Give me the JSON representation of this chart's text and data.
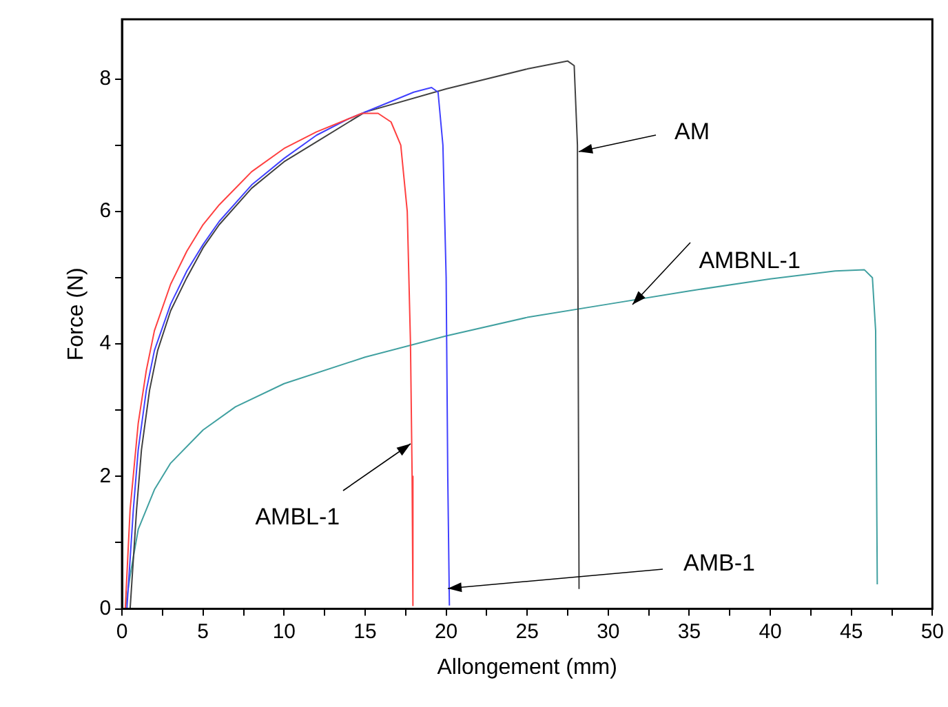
{
  "chart_data": {
    "type": "line",
    "xlabel": "Allongement (mm)",
    "ylabel": "Force (N)",
    "xlim": [
      0,
      50
    ],
    "ylim": [
      0,
      8.9
    ],
    "xticks": [
      0,
      {
        "value": 2.5,
        "label": null
      },
      5,
      {
        "value": 7.5,
        "label": null
      },
      10,
      {
        "value": 12.5,
        "label": null
      },
      15,
      {
        "value": 17.5,
        "label": null
      },
      20,
      {
        "value": 22.5,
        "label": null
      },
      25,
      {
        "value": 27.5,
        "label": null
      },
      30,
      {
        "value": 32.5,
        "label": null
      },
      35,
      {
        "value": 37.5,
        "label": null
      },
      40,
      {
        "value": 42.5,
        "label": null
      },
      45,
      {
        "value": 47.5,
        "label": null
      },
      50
    ],
    "yticks": [
      0,
      {
        "value": 1,
        "label": null
      },
      2,
      {
        "value": 3,
        "label": null
      },
      4,
      {
        "value": 5,
        "label": null
      },
      6,
      {
        "value": 7,
        "label": null
      },
      8
    ],
    "grid": false,
    "legend": false,
    "marker": "none",
    "line_style": "solid",
    "series": [
      {
        "color": "#ff4040",
        "x": [
          0.2,
          0.5,
          1,
          1.5,
          2,
          3,
          4,
          5,
          6,
          8,
          10,
          12,
          14,
          14.8,
          15.8,
          16.6,
          17.2,
          17.6,
          17.8,
          17.9,
          17.95
        ],
        "values": [
          0,
          1.5,
          2.8,
          3.6,
          4.2,
          4.9,
          5.4,
          5.8,
          6.1,
          6.6,
          6.95,
          7.2,
          7.4,
          7.48,
          7.48,
          7.35,
          7.0,
          6.0,
          4.0,
          2.0,
          0.05
        ]
      },
      {
        "color": "#4040ff",
        "x": [
          0.3,
          0.7,
          1,
          1.5,
          2,
          3,
          4,
          5,
          6,
          8,
          10,
          12,
          14,
          16,
          18,
          19.1,
          19.5,
          19.8,
          20,
          20.1,
          20.2
        ],
        "values": [
          0,
          1.5,
          2.4,
          3.3,
          3.9,
          4.6,
          5.1,
          5.5,
          5.85,
          6.4,
          6.8,
          7.15,
          7.4,
          7.6,
          7.8,
          7.87,
          7.8,
          7.0,
          5.0,
          2.0,
          0.05
        ]
      },
      {
        "color": "#404040",
        "x": [
          0.5,
          0.9,
          1.2,
          1.7,
          2.2,
          3,
          4,
          5,
          6,
          8,
          10,
          12,
          14,
          15,
          20,
          25,
          27.5,
          27.9,
          28.1,
          28.2
        ],
        "values": [
          0,
          1.5,
          2.4,
          3.3,
          3.9,
          4.5,
          5.0,
          5.45,
          5.8,
          6.35,
          6.75,
          7.05,
          7.35,
          7.5,
          7.85,
          8.15,
          8.27,
          8.2,
          7.0,
          0.3
        ]
      },
      {
        "color": "#40a0a0",
        "x": [
          0.2,
          0.5,
          1,
          2,
          3,
          5,
          7,
          10,
          15,
          20,
          25,
          30,
          35,
          40,
          44,
          45.8,
          46.3,
          46.5,
          46.6
        ],
        "values": [
          0,
          0.5,
          1.2,
          1.8,
          2.2,
          2.7,
          3.05,
          3.4,
          3.8,
          4.12,
          4.4,
          4.6,
          4.8,
          4.98,
          5.1,
          5.12,
          5.0,
          4.2,
          0.37
        ]
      }
    ],
    "annotations": [
      {
        "text": "AM",
        "x": 28.2,
        "y": 6.9
      },
      {
        "text": "AMBNL-1",
        "x": 31.5,
        "y": 4.6
      },
      {
        "text": "AMB-1",
        "x": 20.1,
        "y": 0.3
      },
      {
        "text": "AMBL-1",
        "x": 17.8,
        "y": 2.5
      }
    ]
  }
}
